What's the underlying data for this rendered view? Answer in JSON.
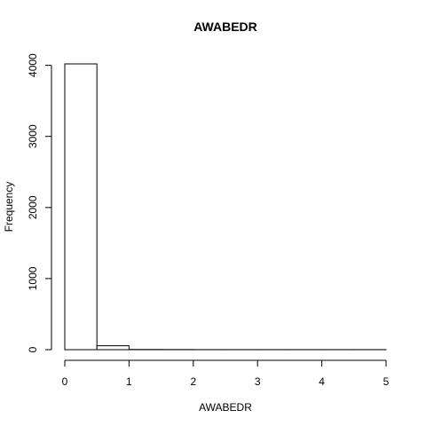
{
  "chart_data": {
    "type": "bar",
    "title": "AWABEDR",
    "xlabel": "AWABEDR",
    "ylabel": "Frequency",
    "bins": [
      {
        "x0": 0.0,
        "x1": 0.5,
        "count": 4020
      },
      {
        "x0": 0.5,
        "x1": 1.0,
        "count": 55
      },
      {
        "x0": 1.0,
        "x1": 1.5,
        "count": 3
      },
      {
        "x0": 1.5,
        "x1": 2.0,
        "count": 2
      },
      {
        "x0": 2.0,
        "x1": 2.5,
        "count": 1
      },
      {
        "x0": 2.5,
        "x1": 3.0,
        "count": 1
      },
      {
        "x0": 3.0,
        "x1": 3.5,
        "count": 1
      },
      {
        "x0": 3.5,
        "x1": 4.0,
        "count": 1
      },
      {
        "x0": 4.0,
        "x1": 4.5,
        "count": 1
      },
      {
        "x0": 4.5,
        "x1": 5.0,
        "count": 1
      }
    ],
    "xlim": [
      0,
      5
    ],
    "ylim": [
      0,
      4020
    ],
    "x_ticks": [
      0,
      1,
      2,
      3,
      4,
      5
    ],
    "y_ticks": [
      0,
      1000,
      2000,
      3000,
      4000
    ],
    "grid": false,
    "legend": "none"
  }
}
